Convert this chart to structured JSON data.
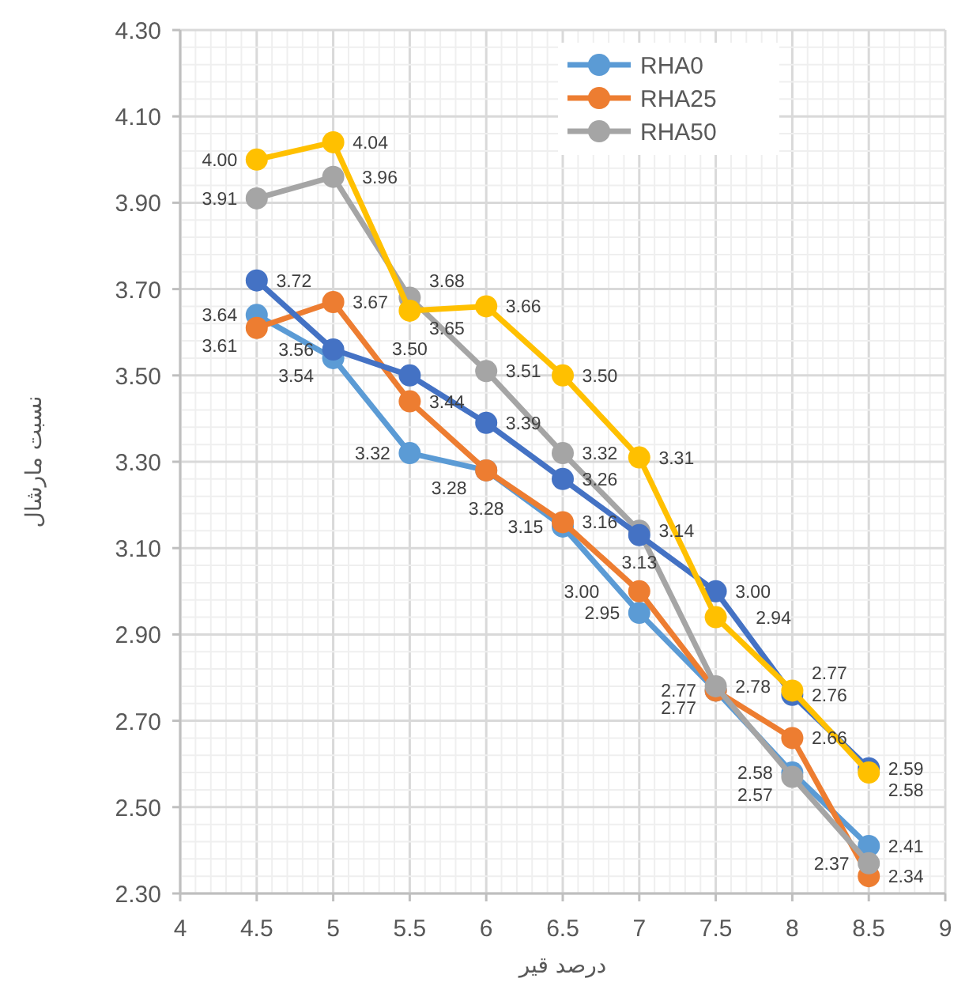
{
  "chart_data": {
    "type": "line",
    "xlabel": "درصد قیر",
    "ylabel": "نسبت مارشال",
    "x": [
      4.5,
      5,
      5.5,
      6,
      6.5,
      7,
      7.5,
      8,
      8.5
    ],
    "series": [
      {
        "name": "RHA0",
        "color": "#5b9bd5",
        "values": [
          3.64,
          3.54,
          3.32,
          3.28,
          3.15,
          2.95,
          2.77,
          2.58,
          2.41
        ],
        "value_labels": [
          "3.64",
          "3.54",
          "3.32",
          "3.28",
          "3.15",
          "2.95",
          "2.77",
          "2.58",
          "2.41"
        ]
      },
      {
        "name": "RHA25",
        "color": "#ed7d31",
        "values": [
          3.61,
          3.67,
          3.44,
          3.28,
          3.16,
          3.0,
          2.77,
          2.66,
          2.34
        ],
        "value_labels": [
          "3.61",
          "3.67",
          "3.44",
          "3.28",
          "3.16",
          "3.00",
          "2.77",
          "2.66",
          "2.34"
        ]
      },
      {
        "name": "RHA50",
        "color": "#a5a5a5",
        "values": [
          3.91,
          3.96,
          3.68,
          3.51,
          3.32,
          3.14,
          2.78,
          2.57,
          2.37
        ],
        "value_labels": [
          "3.91",
          "3.96",
          "3.68",
          "3.51",
          "3.32",
          "3.14",
          "2.78",
          "2.57",
          "2.37"
        ]
      },
      {
        "color": "#4472c4",
        "values": [
          3.72,
          3.56,
          3.5,
          3.39,
          3.26,
          3.13,
          3.0,
          2.76,
          2.59
        ],
        "value_labels": [
          "3.72",
          "3.56",
          "3.50",
          "3.39",
          "3.26",
          "3.13",
          "3.00",
          "2.76",
          "2.59"
        ]
      },
      {
        "color": "#ffc000",
        "values": [
          4.0,
          4.04,
          3.65,
          3.66,
          3.5,
          3.31,
          2.94,
          2.77,
          2.58
        ],
        "value_labels": [
          "4.00",
          "4.04",
          "3.65",
          "3.66",
          "3.50",
          "3.31",
          "2.94",
          "2.77",
          "2.58"
        ]
      }
    ],
    "xlim": [
      4,
      9
    ],
    "xticks": [
      4,
      4.5,
      5,
      5.5,
      6,
      6.5,
      7,
      7.5,
      8,
      8.5,
      9
    ],
    "ylim": [
      2.3,
      4.3
    ],
    "yticks": [
      {
        "value": 2.3,
        "label": "2.30"
      },
      {
        "value": 2.5,
        "label": "2.50"
      },
      {
        "value": 2.7,
        "label": "2.70"
      },
      {
        "value": 2.9,
        "label": "2.90"
      },
      {
        "value": 3.1,
        "label": "3.10"
      },
      {
        "value": 3.3,
        "label": "3.30"
      },
      {
        "value": 3.5,
        "label": "3.50"
      },
      {
        "value": 3.7,
        "label": "3.70"
      },
      {
        "value": 3.9,
        "label": "3.90"
      },
      {
        "value": 4.1,
        "label": "4.10"
      },
      {
        "value": 4.3,
        "label": "4.30"
      }
    ],
    "grid": true,
    "legend": "top right",
    "marker": "circle",
    "line_style": "solid"
  }
}
